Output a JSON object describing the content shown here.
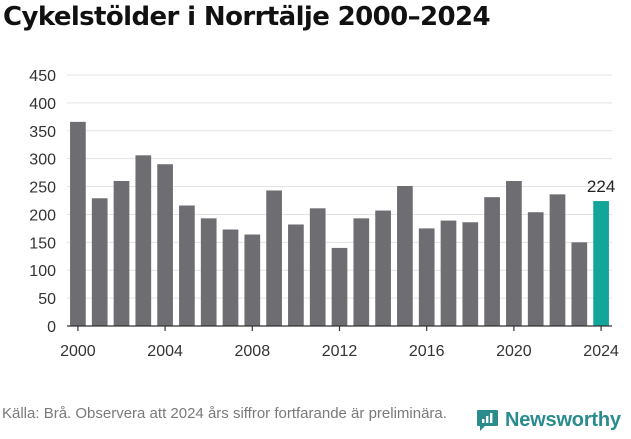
{
  "title": "Cykelstölder i Norrtälje 2000–2024",
  "source": "Källa: Brå. Observera att 2024 års siffror fortfarande är preliminära.",
  "brand": "Newsworthy",
  "colors": {
    "bar": "#6d6d72",
    "highlight": "#12a59a",
    "grid": "#e3e3e3",
    "axis": "#333333",
    "brand": "#2a8c8c"
  },
  "chart_data": {
    "type": "bar",
    "x": [
      2000,
      2001,
      2002,
      2003,
      2004,
      2005,
      2006,
      2007,
      2008,
      2009,
      2010,
      2011,
      2012,
      2013,
      2014,
      2015,
      2016,
      2017,
      2018,
      2019,
      2020,
      2021,
      2022,
      2023,
      2024
    ],
    "values": [
      366,
      229,
      260,
      306,
      290,
      216,
      193,
      173,
      164,
      243,
      182,
      211,
      140,
      193,
      207,
      251,
      175,
      189,
      186,
      231,
      260,
      204,
      236,
      150,
      224
    ],
    "highlight_index": 24,
    "highlight_label": "224",
    "yticks": [
      0,
      50,
      100,
      150,
      200,
      250,
      300,
      350,
      400,
      450
    ],
    "xticks": [
      2000,
      2004,
      2008,
      2012,
      2016,
      2020,
      2024
    ],
    "ylim": [
      0,
      450
    ],
    "grid": true,
    "xlabel": "",
    "ylabel": ""
  }
}
